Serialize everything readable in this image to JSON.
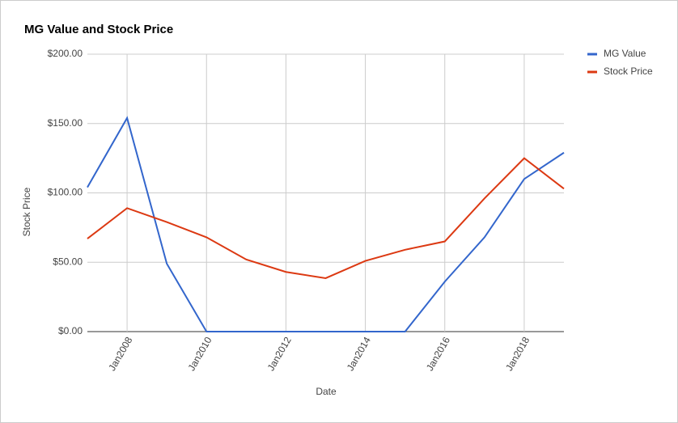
{
  "chart_data": {
    "type": "line",
    "title": "MG Value and Stock Price",
    "x_label": "Date",
    "y_label": "Stock Price",
    "x": [
      2007,
      2008,
      2009,
      2010,
      2011,
      2012,
      2013,
      2014,
      2015,
      2016,
      2017,
      2018,
      2019
    ],
    "xlim": [
      2007,
      2019
    ],
    "xticks": [
      {
        "value": 2008,
        "label": "Jan2008"
      },
      {
        "value": 2010,
        "label": "Jan2010"
      },
      {
        "value": 2012,
        "label": "Jan2012"
      },
      {
        "value": 2014,
        "label": "Jan2014"
      },
      {
        "value": 2016,
        "label": "Jan2016"
      },
      {
        "value": 2018,
        "label": "Jan2018"
      }
    ],
    "ylim": [
      0,
      200
    ],
    "yticks": [
      {
        "value": 0,
        "label": "$0.00"
      },
      {
        "value": 50,
        "label": "$50.00"
      },
      {
        "value": 100,
        "label": "$100.00"
      },
      {
        "value": 150,
        "label": "$150.00"
      },
      {
        "value": 200,
        "label": "$200.00"
      }
    ],
    "grid": true,
    "legend": "right",
    "series": [
      {
        "name": "MG Value",
        "color": "#3366cc",
        "values": [
          104,
          154,
          49,
          0,
          0,
          0,
          0,
          0,
          0,
          36,
          68,
          110,
          129
        ]
      },
      {
        "name": "Stock Price",
        "color": "#dc3912",
        "values": [
          67,
          89,
          79,
          68,
          52,
          43,
          38.5,
          51,
          59,
          65,
          96,
          125,
          103
        ]
      }
    ]
  }
}
